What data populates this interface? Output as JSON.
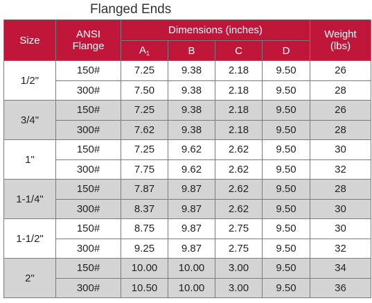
{
  "title": "Flanged Ends",
  "headers": {
    "size": "Size",
    "ansi": "ANSI",
    "flange": "Flange",
    "dimensions": "Dimensions (inches)",
    "weight": "Weight",
    "weight_unit": "(lbs)",
    "a": "A",
    "a_sub": "1",
    "b": "B",
    "c": "C",
    "d": "D"
  },
  "groups": [
    {
      "size": "1/2\"",
      "rows": [
        {
          "flange": "150#",
          "a": "7.25",
          "b": "9.38",
          "c": "2.18",
          "d": "9.50",
          "weight": "26"
        },
        {
          "flange": "300#",
          "a": "7.50",
          "b": "9.38",
          "c": "2.18",
          "d": "9.50",
          "weight": "28"
        }
      ]
    },
    {
      "size": "3/4\"",
      "rows": [
        {
          "flange": "150#",
          "a": "7.25",
          "b": "9.38",
          "c": "2.18",
          "d": "9.50",
          "weight": "26"
        },
        {
          "flange": "300#",
          "a": "7.62",
          "b": "9.38",
          "c": "2.18",
          "d": "9.50",
          "weight": "28"
        }
      ]
    },
    {
      "size": "1\"",
      "rows": [
        {
          "flange": "150#",
          "a": "7.25",
          "b": "9.62",
          "c": "2.62",
          "d": "9.50",
          "weight": "30"
        },
        {
          "flange": "300#",
          "a": "7.75",
          "b": "9.62",
          "c": "2.62",
          "d": "9.50",
          "weight": "32"
        }
      ]
    },
    {
      "size": "1-1/4\"",
      "rows": [
        {
          "flange": "150#",
          "a": "7.87",
          "b": "9.87",
          "c": "2.62",
          "d": "9.50",
          "weight": "28"
        },
        {
          "flange": "300#",
          "a": "8.37",
          "b": "9.87",
          "c": "2.62",
          "d": "9.50",
          "weight": "30"
        }
      ]
    },
    {
      "size": "1-1/2\"",
      "rows": [
        {
          "flange": "150#",
          "a": "8.75",
          "b": "9.87",
          "c": "2.75",
          "d": "9.50",
          "weight": "30"
        },
        {
          "flange": "300#",
          "a": "9.25",
          "b": "9.87",
          "c": "2.75",
          "d": "9.50",
          "weight": "32"
        }
      ]
    },
    {
      "size": "2\"",
      "rows": [
        {
          "flange": "150#",
          "a": "10.00",
          "b": "10.00",
          "c": "3.00",
          "d": "9.50",
          "weight": "34"
        },
        {
          "flange": "300#",
          "a": "10.50",
          "b": "10.00",
          "c": "3.00",
          "d": "9.50",
          "weight": "36"
        }
      ]
    }
  ],
  "colors": {
    "header_bg": "#c0163a",
    "shade_bg": "#d4d4d4",
    "border": "#7a7a7a"
  }
}
